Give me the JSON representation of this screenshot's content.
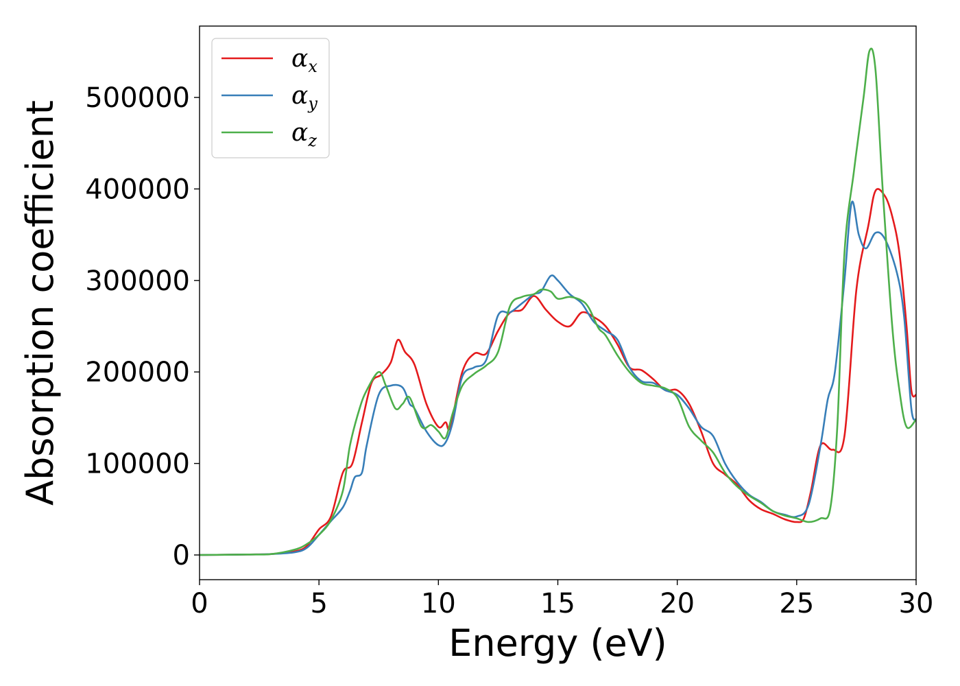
{
  "chart_data": {
    "type": "line",
    "xlabel": "Energy (eV)",
    "ylabel": "Absorption coefficient",
    "xlim": [
      0,
      30
    ],
    "ylim": [
      -27000,
      578000
    ],
    "xticks": [
      0,
      5,
      10,
      15,
      20,
      25,
      30
    ],
    "yticks": [
      0,
      100000,
      200000,
      300000,
      400000,
      500000
    ],
    "grid": false,
    "legend_position": "top-left",
    "series": [
      {
        "name_base": "α",
        "name_sub": "x",
        "color": "#e41a1c",
        "points": [
          [
            0,
            0
          ],
          [
            2,
            500
          ],
          [
            3,
            1000
          ],
          [
            4,
            4000
          ],
          [
            4.5,
            10000
          ],
          [
            5,
            28000
          ],
          [
            5.5,
            42000
          ],
          [
            6,
            90000
          ],
          [
            6.4,
            100000
          ],
          [
            6.8,
            145000
          ],
          [
            7.2,
            188000
          ],
          [
            7.6,
            197000
          ],
          [
            8,
            210000
          ],
          [
            8.3,
            235000
          ],
          [
            8.6,
            222000
          ],
          [
            9,
            208000
          ],
          [
            9.5,
            165000
          ],
          [
            10,
            140000
          ],
          [
            10.3,
            145000
          ],
          [
            10.5,
            140000
          ],
          [
            11,
            200000
          ],
          [
            11.5,
            220000
          ],
          [
            12,
            220000
          ],
          [
            12.5,
            245000
          ],
          [
            13,
            265000
          ],
          [
            13.5,
            268000
          ],
          [
            14,
            283000
          ],
          [
            14.5,
            268000
          ],
          [
            15,
            255000
          ],
          [
            15.5,
            250000
          ],
          [
            16,
            265000
          ],
          [
            16.5,
            260000
          ],
          [
            17,
            250000
          ],
          [
            17.5,
            230000
          ],
          [
            18,
            205000
          ],
          [
            18.5,
            202000
          ],
          [
            19,
            192000
          ],
          [
            19.5,
            180000
          ],
          [
            20,
            180000
          ],
          [
            20.5,
            165000
          ],
          [
            21,
            135000
          ],
          [
            21.5,
            100000
          ],
          [
            22,
            88000
          ],
          [
            22.5,
            77000
          ],
          [
            23,
            60000
          ],
          [
            23.5,
            50000
          ],
          [
            24,
            45000
          ],
          [
            24.5,
            39000
          ],
          [
            25,
            36000
          ],
          [
            25.3,
            40000
          ],
          [
            25.6,
            70000
          ],
          [
            26,
            120000
          ],
          [
            26.5,
            115000
          ],
          [
            27,
            130000
          ],
          [
            27.5,
            290000
          ],
          [
            28,
            360000
          ],
          [
            28.3,
            398000
          ],
          [
            28.7,
            392000
          ],
          [
            29,
            370000
          ],
          [
            29.3,
            330000
          ],
          [
            29.6,
            250000
          ],
          [
            29.8,
            180000
          ],
          [
            30,
            175000
          ]
        ]
      },
      {
        "name_base": "α",
        "name_sub": "y",
        "color": "#377eb8",
        "points": [
          [
            0,
            0
          ],
          [
            2,
            500
          ],
          [
            3,
            1000
          ],
          [
            4,
            3000
          ],
          [
            4.5,
            8000
          ],
          [
            5,
            22000
          ],
          [
            5.5,
            37000
          ],
          [
            6,
            52000
          ],
          [
            6.3,
            70000
          ],
          [
            6.5,
            85000
          ],
          [
            6.8,
            90000
          ],
          [
            7,
            120000
          ],
          [
            7.5,
            175000
          ],
          [
            8,
            185000
          ],
          [
            8.5,
            183000
          ],
          [
            8.8,
            165000
          ],
          [
            9,
            160000
          ],
          [
            9.5,
            135000
          ],
          [
            10,
            120000
          ],
          [
            10.3,
            123000
          ],
          [
            10.6,
            145000
          ],
          [
            11,
            195000
          ],
          [
            11.5,
            205000
          ],
          [
            12,
            213000
          ],
          [
            12.5,
            262000
          ],
          [
            13,
            265000
          ],
          [
            13.5,
            275000
          ],
          [
            14,
            285000
          ],
          [
            14.3,
            288000
          ],
          [
            14.7,
            305000
          ],
          [
            15,
            300000
          ],
          [
            15.5,
            285000
          ],
          [
            16,
            275000
          ],
          [
            16.5,
            255000
          ],
          [
            17,
            245000
          ],
          [
            17.5,
            235000
          ],
          [
            18,
            205000
          ],
          [
            18.5,
            190000
          ],
          [
            19,
            188000
          ],
          [
            19.5,
            180000
          ],
          [
            20,
            175000
          ],
          [
            20.5,
            160000
          ],
          [
            21,
            140000
          ],
          [
            21.5,
            130000
          ],
          [
            22,
            100000
          ],
          [
            22.5,
            80000
          ],
          [
            23,
            66000
          ],
          [
            23.5,
            58000
          ],
          [
            24,
            48000
          ],
          [
            24.5,
            44000
          ],
          [
            25,
            42000
          ],
          [
            25.5,
            55000
          ],
          [
            26,
            120000
          ],
          [
            26.3,
            170000
          ],
          [
            26.6,
            200000
          ],
          [
            27,
            300000
          ],
          [
            27.3,
            385000
          ],
          [
            27.6,
            350000
          ],
          [
            27.9,
            335000
          ],
          [
            28.3,
            352000
          ],
          [
            28.7,
            345000
          ],
          [
            29.2,
            308000
          ],
          [
            29.5,
            260000
          ],
          [
            29.8,
            160000
          ],
          [
            30,
            148000
          ]
        ]
      },
      {
        "name_base": "α",
        "name_sub": "z",
        "color": "#4daf4a",
        "points": [
          [
            0,
            0
          ],
          [
            2,
            500
          ],
          [
            3,
            1000
          ],
          [
            4,
            6000
          ],
          [
            4.5,
            12000
          ],
          [
            5,
            22000
          ],
          [
            5.5,
            38000
          ],
          [
            6,
            70000
          ],
          [
            6.3,
            120000
          ],
          [
            6.7,
            160000
          ],
          [
            7,
            180000
          ],
          [
            7.5,
            200000
          ],
          [
            7.8,
            185000
          ],
          [
            8.2,
            160000
          ],
          [
            8.5,
            165000
          ],
          [
            8.8,
            172000
          ],
          [
            9.3,
            140000
          ],
          [
            9.7,
            142000
          ],
          [
            10,
            135000
          ],
          [
            10.3,
            128000
          ],
          [
            10.6,
            155000
          ],
          [
            11,
            185000
          ],
          [
            11.5,
            198000
          ],
          [
            12,
            207000
          ],
          [
            12.5,
            222000
          ],
          [
            13,
            272000
          ],
          [
            13.5,
            282000
          ],
          [
            14,
            285000
          ],
          [
            14.3,
            290000
          ],
          [
            14.7,
            288000
          ],
          [
            15,
            280000
          ],
          [
            15.5,
            282000
          ],
          [
            16,
            278000
          ],
          [
            16.3,
            270000
          ],
          [
            16.7,
            248000
          ],
          [
            17,
            240000
          ],
          [
            17.5,
            218000
          ],
          [
            18,
            200000
          ],
          [
            18.5,
            188000
          ],
          [
            19,
            185000
          ],
          [
            19.5,
            182000
          ],
          [
            20,
            172000
          ],
          [
            20.5,
            140000
          ],
          [
            21,
            125000
          ],
          [
            21.5,
            112000
          ],
          [
            22,
            90000
          ],
          [
            22.5,
            75000
          ],
          [
            23,
            65000
          ],
          [
            23.5,
            57000
          ],
          [
            24,
            48000
          ],
          [
            24.5,
            43000
          ],
          [
            25,
            40000
          ],
          [
            25.5,
            36000
          ],
          [
            26,
            40000
          ],
          [
            26.4,
            50000
          ],
          [
            26.7,
            140000
          ],
          [
            27,
            330000
          ],
          [
            27.4,
            420000
          ],
          [
            27.8,
            500000
          ],
          [
            28.05,
            551000
          ],
          [
            28.3,
            530000
          ],
          [
            28.6,
            400000
          ],
          [
            29,
            250000
          ],
          [
            29.3,
            180000
          ],
          [
            29.6,
            140000
          ],
          [
            30,
            148000
          ]
        ]
      }
    ]
  }
}
